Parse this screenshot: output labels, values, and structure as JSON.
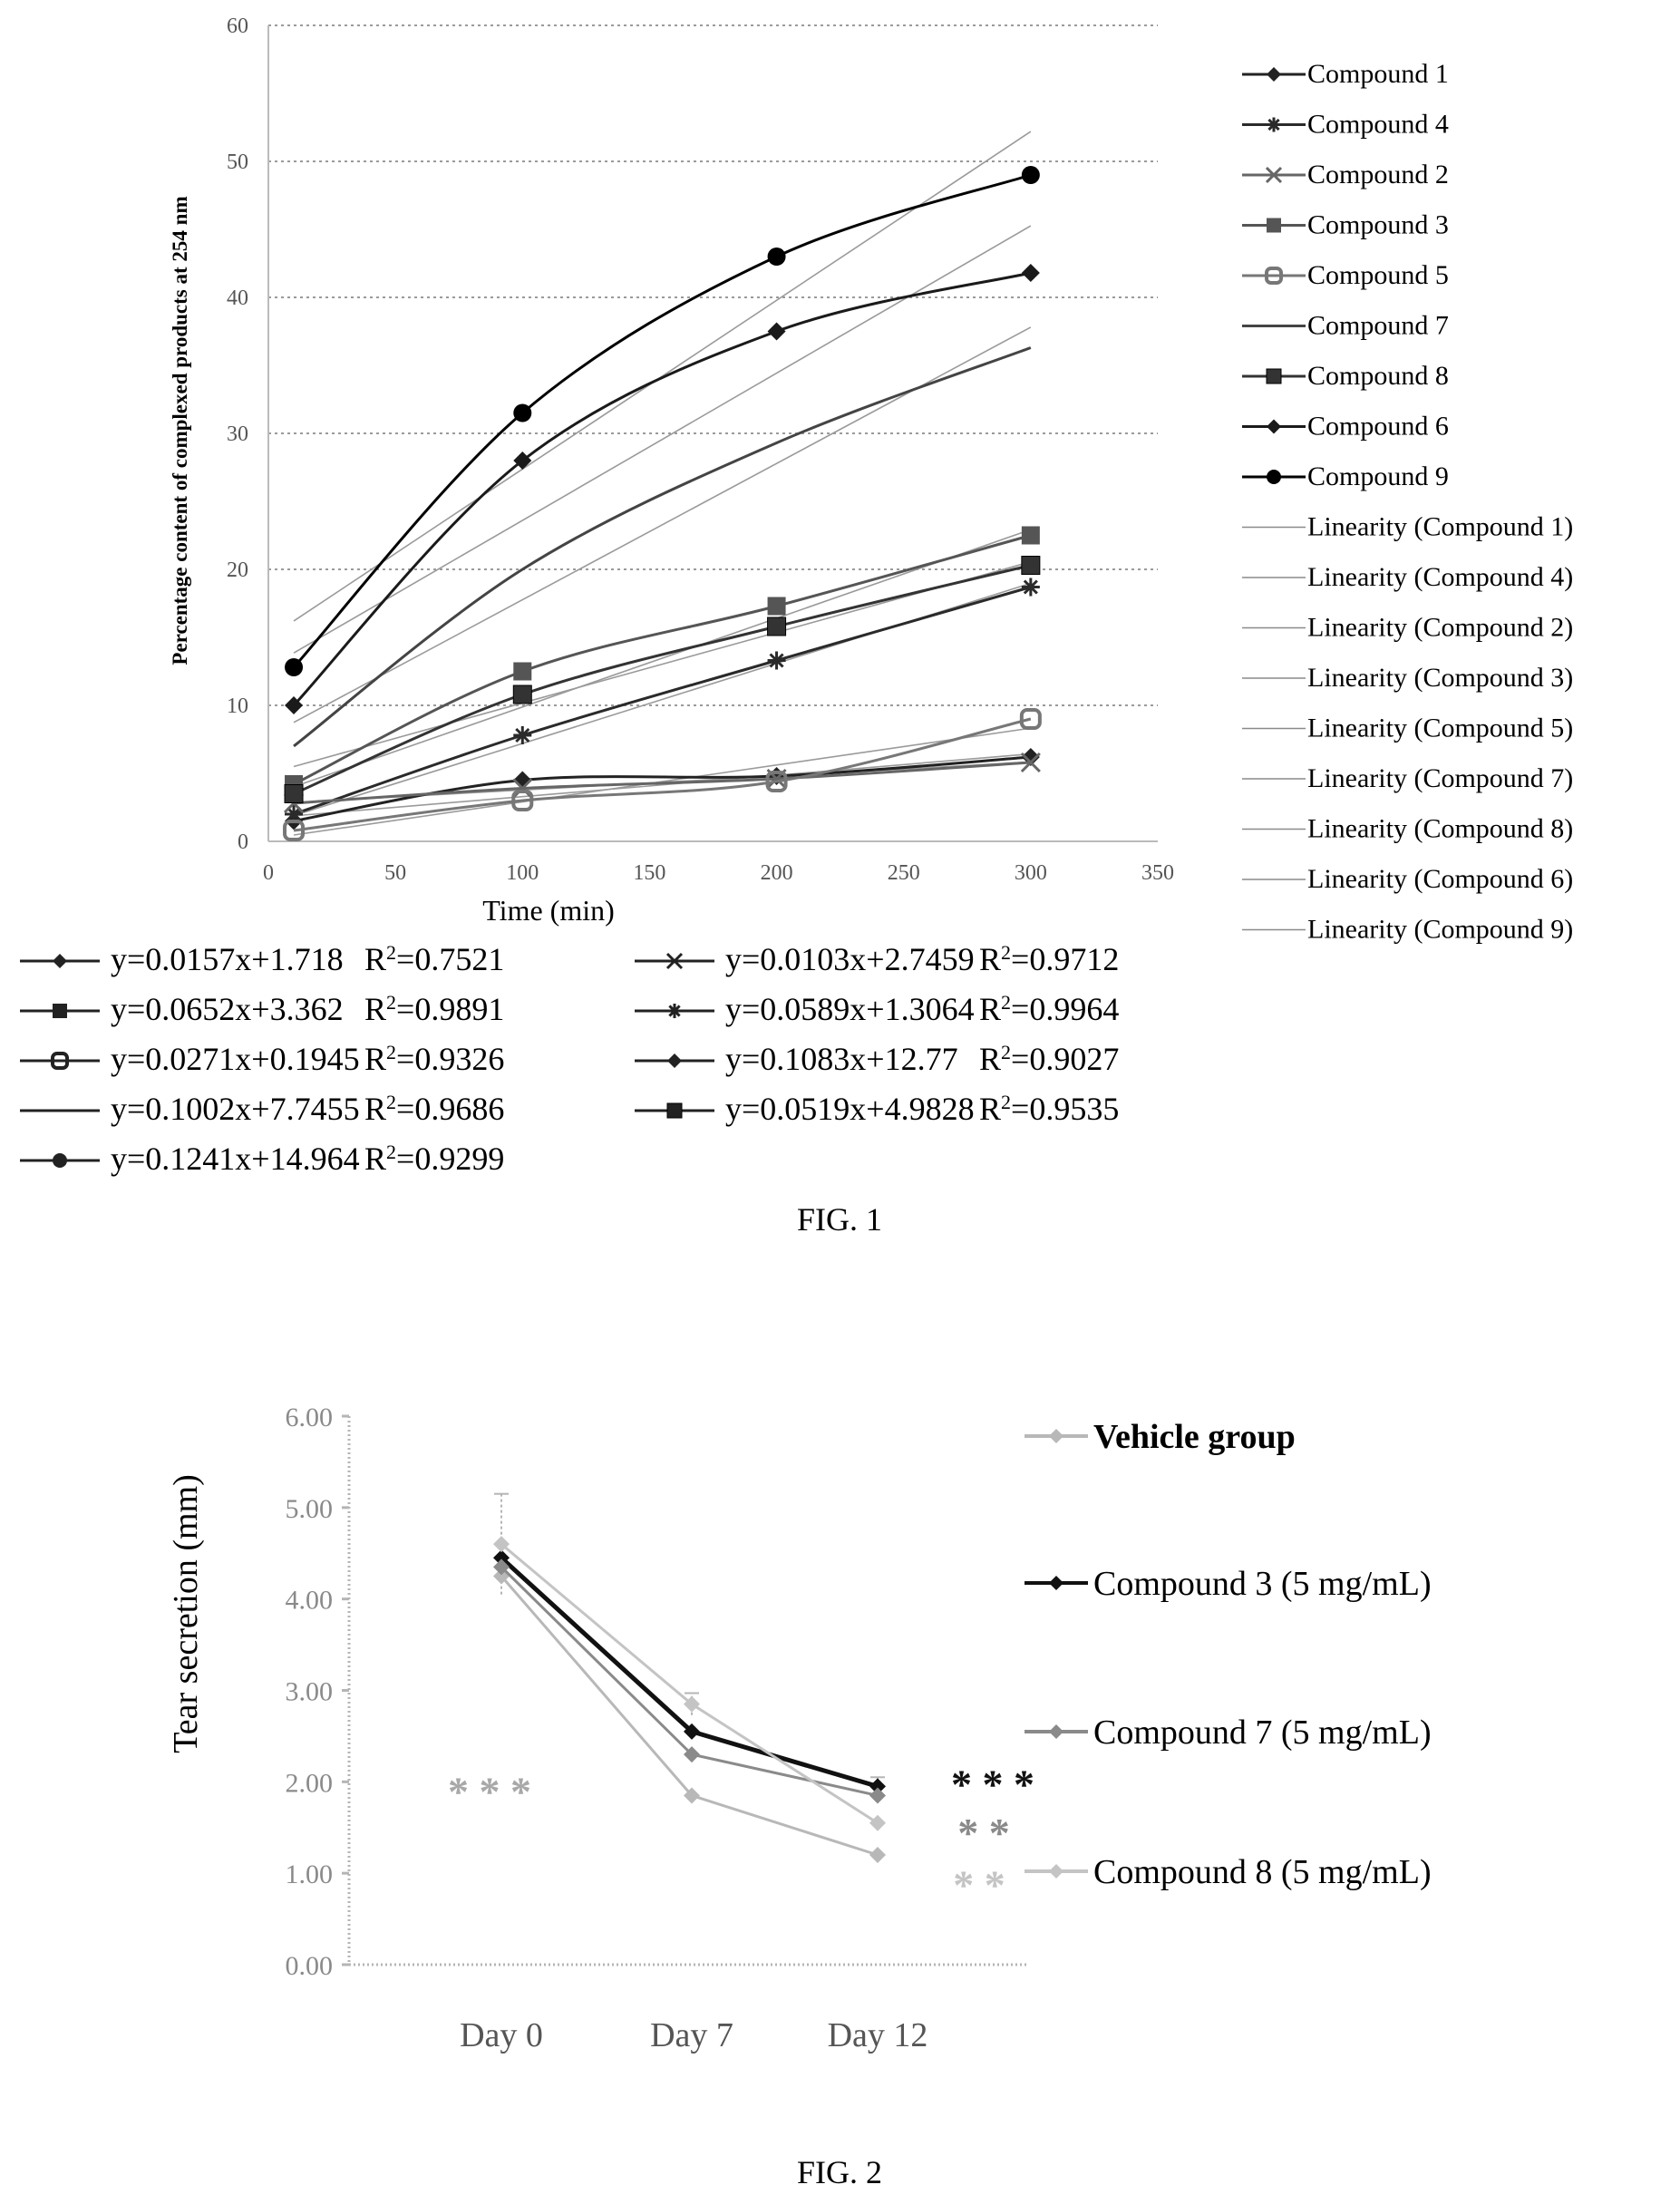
{
  "figures": [
    {
      "caption": "FIG. 1"
    },
    {
      "caption": "FIG. 2"
    }
  ],
  "chart_data": [
    {
      "type": "scatter",
      "title": "",
      "xlabel": "Time (min)",
      "ylabel": "Percentage content of complexed products at 254 nm",
      "xlim": [
        0,
        350
      ],
      "ylim": [
        0,
        60
      ],
      "xticks": [
        "0",
        "50",
        "100",
        "150",
        "200",
        "250",
        "300",
        "350"
      ],
      "yticks": [
        "0",
        "10",
        "20",
        "30",
        "40",
        "50",
        "60"
      ],
      "grid": "horizontal dotted",
      "legend_position": "right",
      "x": [
        10,
        100,
        200,
        300
      ],
      "series": [
        {
          "name": "Compound 1",
          "marker": "diamond",
          "color": "#222222",
          "values": [
            1.5,
            4.5,
            4.8,
            6.2
          ]
        },
        {
          "name": "Compound 4",
          "marker": "asterisk",
          "color": "#2a2a2a",
          "values": [
            2.0,
            7.8,
            13.3,
            18.7
          ]
        },
        {
          "name": "Compound 2",
          "marker": "x",
          "color": "#666666",
          "values": [
            2.8,
            3.9,
            4.6,
            5.8
          ]
        },
        {
          "name": "Compound 3",
          "marker": "square",
          "color": "#555555",
          "values": [
            4.2,
            12.5,
            17.3,
            22.5
          ]
        },
        {
          "name": "Compound 5",
          "marker": "circle-square",
          "color": "#777777",
          "values": [
            0.8,
            3.0,
            4.4,
            9.0
          ]
        },
        {
          "name": "Compound 7",
          "marker": "none",
          "color": "#444444",
          "values": [
            7.0,
            20.0,
            29.3,
            36.3
          ]
        },
        {
          "name": "Compound 8",
          "marker": "square-asterisk",
          "color": "#333333",
          "values": [
            3.5,
            10.8,
            15.8,
            20.3
          ]
        },
        {
          "name": "Compound 6",
          "marker": "diamond",
          "color": "#1a1a1a",
          "values": [
            10.0,
            28.0,
            37.5,
            41.8
          ]
        },
        {
          "name": "Compound 9",
          "marker": "filled-circle",
          "color": "#000000",
          "values": [
            12.8,
            31.5,
            43.0,
            49.0
          ]
        }
      ],
      "linearity_legend": [
        "Linearity (Compound 1)",
        "Linearity (Compound 4)",
        "Linearity (Compound 2)",
        "Linearity (Compound 3)",
        "Linearity (Compound 5)",
        "Linearity (Compound 7)",
        "Linearity (Compound 8)",
        "Linearity (Compound 6)",
        "Linearity (Compound 9)"
      ],
      "equations": [
        {
          "marker": "diamond",
          "eq": "y=0.0157x+1.718",
          "r2": "=0.7521"
        },
        {
          "marker": "x",
          "eq": "y=0.0103x+2.7459",
          "r2": "=0.9712"
        },
        {
          "marker": "square",
          "eq": "y=0.0652x+3.362",
          "r2": "=0.9891"
        },
        {
          "marker": "asterisk",
          "eq": "y=0.0589x+1.3064",
          "r2": "=0.9964"
        },
        {
          "marker": "circle-square",
          "eq": "y=0.0271x+0.1945",
          "r2": "=0.9326"
        },
        {
          "marker": "diamond",
          "eq": "y=0.1083x+12.77",
          "r2": "=0.9027"
        },
        {
          "marker": "none",
          "eq": "y=0.1002x+7.7455",
          "r2": "=0.9686"
        },
        {
          "marker": "square-asterisk",
          "eq": "y=0.0519x+4.9828",
          "r2": "=0.9535"
        },
        {
          "marker": "filled-circle",
          "eq": "y=0.1241x+14.964",
          "r2": "=0.9299"
        }
      ],
      "fits": [
        {
          "slope": 0.0157,
          "intercept": 1.718
        },
        {
          "slope": 0.0103,
          "intercept": 2.7459
        },
        {
          "slope": 0.0652,
          "intercept": 3.362
        },
        {
          "slope": 0.0589,
          "intercept": 1.3064
        },
        {
          "slope": 0.0271,
          "intercept": 0.1945
        },
        {
          "slope": 0.1083,
          "intercept": 12.77
        },
        {
          "slope": 0.1002,
          "intercept": 7.7455
        },
        {
          "slope": 0.0519,
          "intercept": 4.9828
        },
        {
          "slope": 0.1241,
          "intercept": 14.964
        }
      ]
    },
    {
      "type": "line",
      "title": "",
      "xlabel": "",
      "ylabel": "Tear secretion (mm)",
      "categories": [
        "Day 0",
        "Day 7",
        "Day 12"
      ],
      "ylim": [
        0,
        6
      ],
      "yticks": [
        "0.00",
        "1.00",
        "2.00",
        "3.00",
        "4.00",
        "5.00",
        "6.00"
      ],
      "legend_position": "right",
      "series": [
        {
          "name": "Vehicle group",
          "color": "#b8b8b8",
          "values": [
            4.25,
            1.85,
            1.2
          ]
        },
        {
          "name": "Compound 3 (5 mg/mL)",
          "color": "#111111",
          "values": [
            4.45,
            2.55,
            1.95
          ]
        },
        {
          "name": "Compound 7 (5 mg/mL)",
          "color": "#8a8a8a",
          "values": [
            4.35,
            2.3,
            1.85
          ]
        },
        {
          "name": "Compound 8 (5 mg/mL)",
          "color": "#c4c4c4",
          "values": [
            4.6,
            2.85,
            1.55
          ]
        }
      ],
      "errors": [
        0.55,
        0.12,
        0.1
      ],
      "annotations": [
        {
          "text": "* * *",
          "near": "Day 0",
          "color": "#a8a8a8"
        },
        {
          "text": "* * *",
          "near": "Day 12",
          "color": "#111111"
        },
        {
          "text": "* *",
          "near": "Day 12",
          "color": "#8a8a8a"
        },
        {
          "text": "* *",
          "near": "Day 12",
          "color": "#c4c4c4"
        }
      ]
    }
  ]
}
